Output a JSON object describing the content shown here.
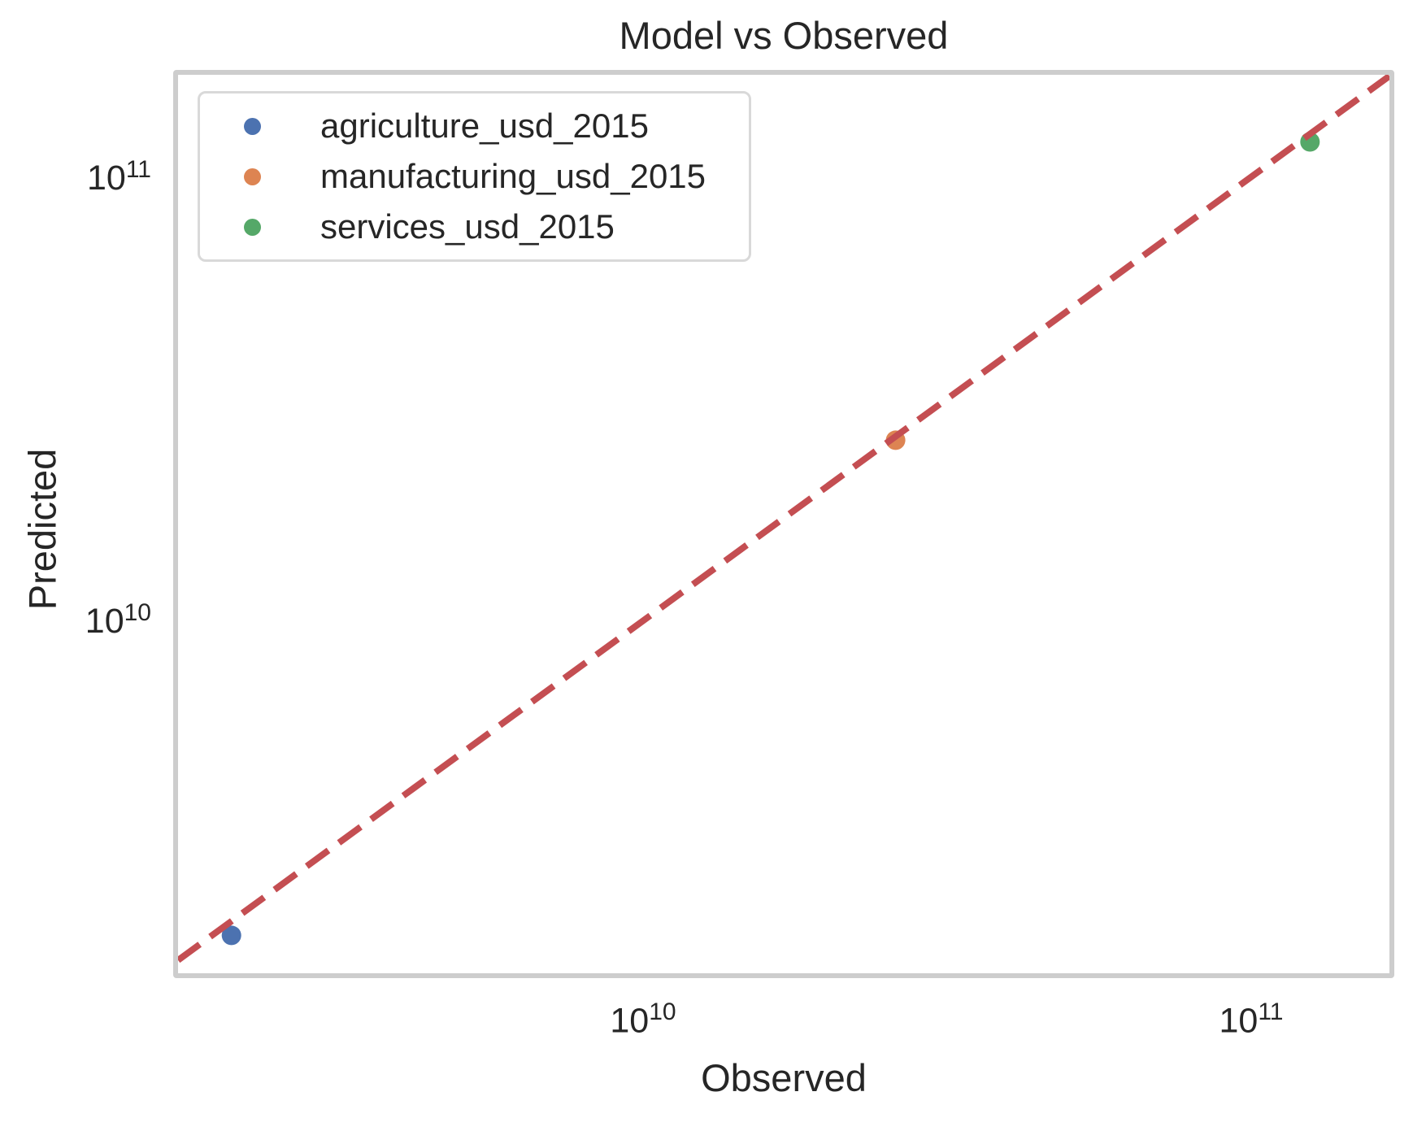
{
  "figure": {
    "background_color": "#ffffff",
    "text_color": "#262626",
    "spine_color": "#cdcdcd"
  },
  "chart_data": {
    "type": "scatter",
    "title": "Model vs Observed",
    "xlabel": "Observed",
    "ylabel": "Predicted",
    "xscale": "log",
    "yscale": "log",
    "xlim": [
      1715000000.0,
      168900000000.0
    ],
    "ylim": [
      1602000000.0,
      170000000000.0
    ],
    "xticks": [
      10000000000.0,
      100000000000.0
    ],
    "yticks": [
      100000000000.0,
      10000000000.0
    ],
    "grid": false,
    "legend_position": "upper-left",
    "marker": "circle",
    "series": [
      {
        "name": "agriculture_usd_2015",
        "color": "#4C72B0",
        "points": [
          {
            "observed": 2100000000.0,
            "predicted": 1950000000.0
          }
        ]
      },
      {
        "name": "manufacturing_usd_2015",
        "color": "#DD8452",
        "points": [
          {
            "observed": 26000000000.0,
            "predicted": 25500000000.0
          }
        ]
      },
      {
        "name": "services_usd_2015",
        "color": "#55A868",
        "points": [
          {
            "observed": 125000000000.0,
            "predicted": 120000000000.0
          }
        ]
      }
    ],
    "reference_line": {
      "type": "identity",
      "equation": "y = x",
      "style": "dashed",
      "color": "#C44E52"
    }
  }
}
